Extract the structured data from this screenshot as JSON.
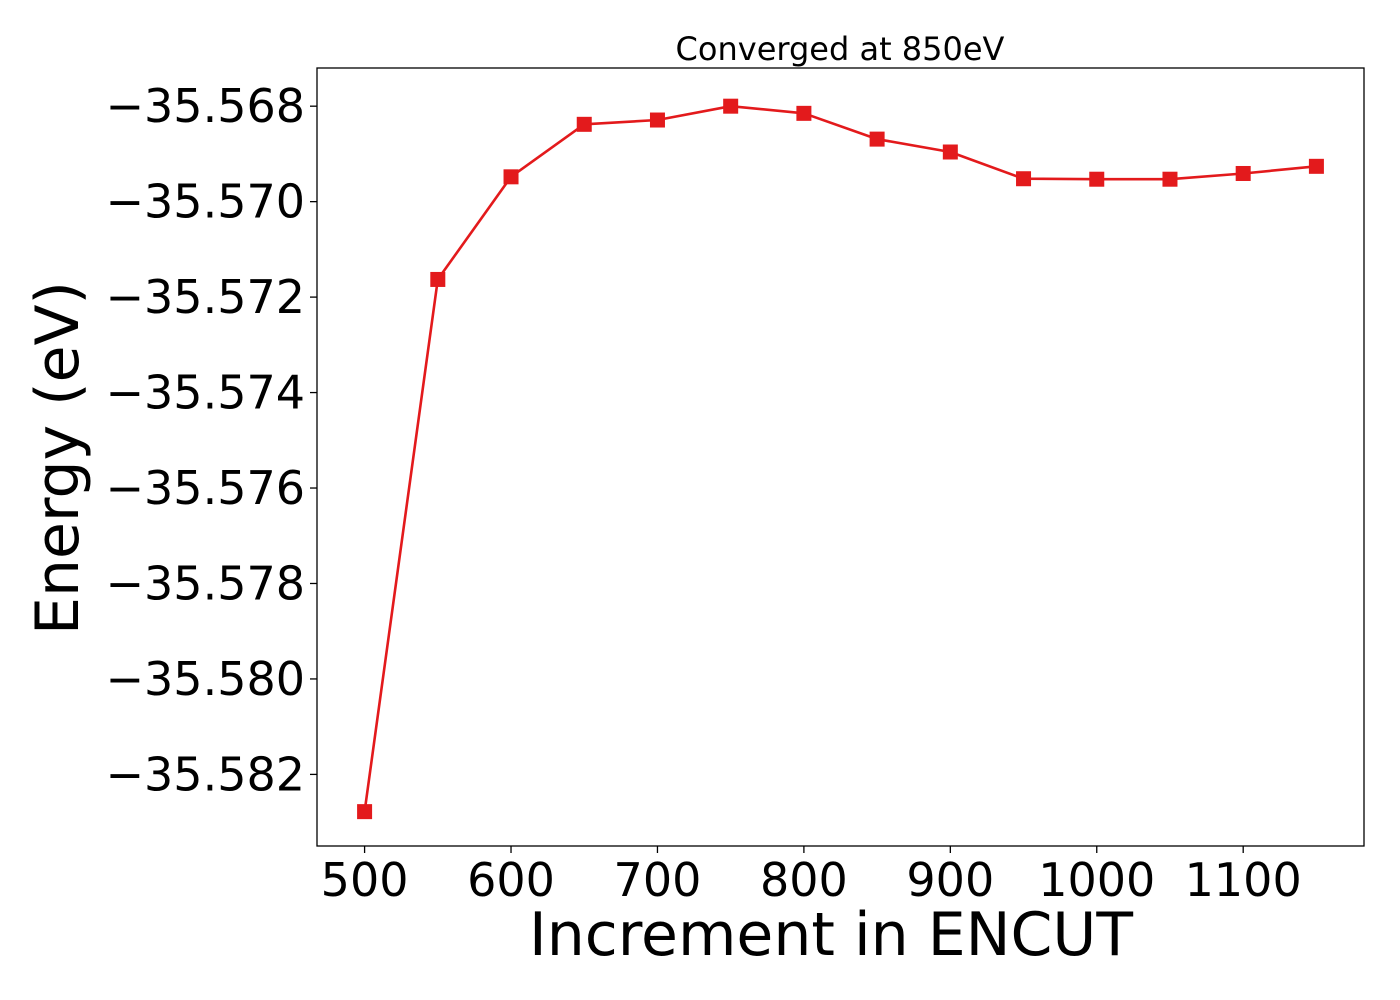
{
  "chart_data": {
    "type": "line",
    "title": "Converged at 850eV",
    "xlabel": "Increment in ENCUT",
    "ylabel": "Energy (eV)",
    "xlim": [
      467.5,
      1182.5
    ],
    "ylim": [
      -35.5835,
      -35.5672
    ],
    "xticks": [
      500,
      600,
      700,
      800,
      900,
      1000,
      1100
    ],
    "xtick_labels": [
      "500",
      "600",
      "700",
      "800",
      "900",
      "1000",
      "1100"
    ],
    "yticks": [
      -35.568,
      -35.57,
      -35.572,
      -35.574,
      -35.576,
      -35.578,
      -35.58,
      -35.582
    ],
    "ytick_labels": [
      "−35.568",
      "−35.570",
      "−35.572",
      "−35.574",
      "−35.576",
      "−35.578",
      "−35.580",
      "−35.582"
    ],
    "grid": false,
    "series": [
      {
        "color": "#e31a1c",
        "marker": "square",
        "x": [
          500,
          550,
          600,
          650,
          700,
          750,
          800,
          850,
          900,
          950,
          1000,
          1050,
          1100,
          1150
        ],
        "y": [
          -35.58278,
          -35.57163,
          -35.56948,
          -35.56838,
          -35.56829,
          -35.568,
          -35.56815,
          -35.56869,
          -35.56896,
          -35.56952,
          -35.56953,
          -35.56953,
          -35.56941,
          -35.56926
        ]
      }
    ]
  }
}
